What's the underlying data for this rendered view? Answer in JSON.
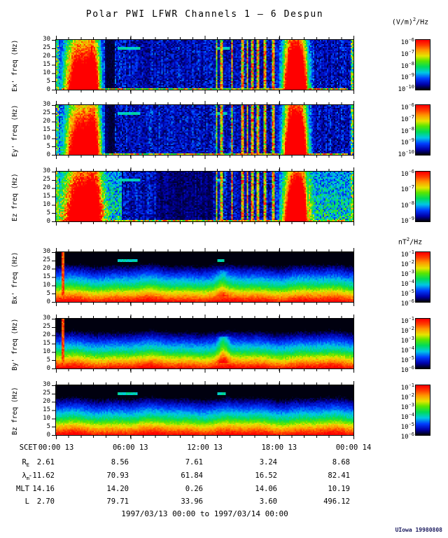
{
  "title": "Polar PWI LFWR Channels 1 — 6 Despun",
  "units": {
    "e": {
      "pre": "(V/m)",
      "sup": "2",
      "post": "/Hz"
    },
    "b": {
      "pre": "nT",
      "sup": "2",
      "post": "/Hz"
    }
  },
  "time_axis": {
    "prefix": "SCET",
    "ticks": [
      "00:00 13",
      "06:00 13",
      "12:00 13",
      "18:00 13",
      "00:00 14"
    ],
    "span_hours": 24
  },
  "freq_axis": {
    "ticks": [
      30,
      25,
      20,
      15,
      10,
      5,
      0
    ],
    "min": 0,
    "max": 30
  },
  "panels": [
    {
      "id": "ex",
      "ylabel": "Ex' freq (Hz)",
      "field": "E",
      "seed": 3,
      "cb_exponents": [
        -6,
        -7,
        -8,
        -9,
        -10
      ],
      "features": {
        "bursts": [
          {
            "t": 1.8,
            "sigma": 0.75,
            "amp": 1.25
          },
          {
            "t": 3.0,
            "sigma": 0.4,
            "amp": 1.0
          },
          {
            "t": 18.95,
            "sigma": 0.45,
            "amp": 1.35
          },
          {
            "t": 19.75,
            "sigma": 0.4,
            "amp": 1.25
          }
        ],
        "lines": [
          {
            "t": 12.95,
            "w": 0.06,
            "a": 0.8
          },
          {
            "t": 13.35,
            "w": 0.07,
            "a": 0.95
          },
          {
            "t": 14.2,
            "w": 0.09,
            "a": 1.0
          },
          {
            "t": 15.05,
            "w": 0.1,
            "a": 1.0
          },
          {
            "t": 15.45,
            "w": 0.09,
            "a": 1.0
          },
          {
            "t": 15.85,
            "w": 0.1,
            "a": 1.0
          },
          {
            "t": 16.3,
            "w": 0.09,
            "a": 0.95
          },
          {
            "t": 16.9,
            "w": 0.12,
            "a": 1.0
          },
          {
            "t": 17.55,
            "w": 0.16,
            "a": 1.0
          }
        ],
        "dashes": [
          {
            "t0": 5.0,
            "t1": 6.8,
            "f": 25
          },
          {
            "t0": 13.0,
            "t1": 14.0,
            "f": 25
          }
        ],
        "dark": [
          [
            3.95,
            4.75,
            0.25
          ]
        ]
      }
    },
    {
      "id": "ey",
      "ylabel": "Ey' freq (Hz)",
      "field": "E",
      "seed": 7,
      "cb_exponents": [
        -6,
        -7,
        -8,
        -9,
        -10
      ],
      "features": {
        "bursts": [
          {
            "t": 1.85,
            "sigma": 0.75,
            "amp": 1.25
          },
          {
            "t": 3.05,
            "sigma": 0.4,
            "amp": 1.0
          },
          {
            "t": 18.95,
            "sigma": 0.45,
            "amp": 1.35
          },
          {
            "t": 19.75,
            "sigma": 0.4,
            "amp": 1.25
          }
        ],
        "lines": [
          {
            "t": 12.95,
            "w": 0.06,
            "a": 0.8
          },
          {
            "t": 13.35,
            "w": 0.07,
            "a": 0.95
          },
          {
            "t": 14.2,
            "w": 0.09,
            "a": 1.0
          },
          {
            "t": 15.05,
            "w": 0.1,
            "a": 1.0
          },
          {
            "t": 15.45,
            "w": 0.09,
            "a": 1.0
          },
          {
            "t": 15.85,
            "w": 0.1,
            "a": 1.0
          },
          {
            "t": 16.3,
            "w": 0.09,
            "a": 0.95
          },
          {
            "t": 16.9,
            "w": 0.12,
            "a": 1.0
          },
          {
            "t": 17.55,
            "w": 0.16,
            "a": 1.0
          }
        ],
        "dashes": [
          {
            "t0": 5.0,
            "t1": 6.8,
            "f": 25
          },
          {
            "t0": 13.0,
            "t1": 13.8,
            "f": 25
          }
        ],
        "dark": [
          [
            3.95,
            4.75,
            0.25
          ]
        ]
      }
    },
    {
      "id": "ez",
      "ylabel": "Ez freq (Hz)",
      "field": "E",
      "seed": 11,
      "cb_exponents": [
        -6,
        -7,
        -8,
        -9
      ],
      "features": {
        "bursts": [
          {
            "t": 1.9,
            "sigma": 0.8,
            "amp": 1.15
          },
          {
            "t": 3.1,
            "sigma": 0.45,
            "amp": 0.95
          },
          {
            "t": 19.0,
            "sigma": 0.5,
            "amp": 1.3
          },
          {
            "t": 19.8,
            "sigma": 0.4,
            "amp": 1.2
          }
        ],
        "lines": [
          {
            "t": 12.95,
            "w": 0.06,
            "a": 0.85
          },
          {
            "t": 13.35,
            "w": 0.07,
            "a": 0.95
          },
          {
            "t": 14.2,
            "w": 0.09,
            "a": 1.0
          },
          {
            "t": 15.05,
            "w": 0.1,
            "a": 1.0
          },
          {
            "t": 15.45,
            "w": 0.09,
            "a": 1.0
          },
          {
            "t": 15.85,
            "w": 0.1,
            "a": 1.0
          },
          {
            "t": 16.3,
            "w": 0.09,
            "a": 0.95
          },
          {
            "t": 16.9,
            "w": 0.12,
            "a": 1.0
          },
          {
            "t": 17.55,
            "w": 0.16,
            "a": 1.0
          }
        ],
        "dashes": [
          {
            "t0": 5.0,
            "t1": 6.8,
            "f": 25
          },
          {
            "t0": 13.0,
            "t1": 13.7,
            "f": 25
          }
        ],
        "dark": [
          [
            8.0,
            12.7,
            0.5
          ]
        ],
        "bright": [
          [
            0.0,
            5.3
          ],
          [
            20.4,
            24.0
          ]
        ]
      }
    },
    {
      "id": "bx",
      "ylabel": "Bx' freq (Hz)",
      "field": "B",
      "seed": 17,
      "cb_exponents": [
        -1,
        -2,
        -3,
        -4,
        -5,
        -6
      ],
      "features": {
        "redline": 0.55,
        "dashes": [
          {
            "t0": 5.0,
            "t1": 6.6,
            "f": 25
          },
          {
            "t0": 13.0,
            "t1": 13.6,
            "f": 25
          }
        ],
        "smudges": [
          {
            "t": 13.4,
            "sigma": 0.3,
            "amp": 0.1,
            "f0": 0.1,
            "f1": 0.65
          }
        ]
      }
    },
    {
      "id": "by",
      "ylabel": "By' freq (Hz)",
      "field": "B",
      "seed": 23,
      "cb_exponents": [
        -1,
        -2,
        -3,
        -4,
        -5,
        -6
      ],
      "features": {
        "redline": 0.55,
        "dashes": [],
        "smudges": [
          {
            "t": 13.5,
            "sigma": 0.3,
            "amp": 0.2,
            "f0": 0.1,
            "f1": 0.65
          }
        ]
      }
    },
    {
      "id": "bz",
      "ylabel": "Bz freq (Hz)",
      "field": "B",
      "seed": 29,
      "cb_exponents": [
        -1,
        -2,
        -3,
        -4,
        -5,
        -6
      ],
      "features": {
        "dashes": [
          {
            "t0": 5.0,
            "t1": 6.6,
            "f": 25
          },
          {
            "t0": 13.0,
            "t1": 13.7,
            "f": 25
          }
        ],
        "smudges": []
      }
    }
  ],
  "ephemeris": {
    "rows": [
      {
        "label": "R",
        "sub": "E",
        "values": [
          "2.61",
          "8.56",
          "7.61",
          "3.24",
          "8.68"
        ]
      },
      {
        "label": "λ",
        "sub": "m",
        "values": [
          "-11.62",
          "70.93",
          "61.84",
          "16.52",
          "82.41"
        ]
      },
      {
        "label": "MLT",
        "sub": "",
        "values": [
          "14.16",
          "14.20",
          "0.26",
          "14.06",
          "10.19"
        ]
      },
      {
        "label": "L",
        "sub": "",
        "values": [
          "2.70",
          "79.71",
          "33.96",
          "3.60",
          "496.12"
        ]
      }
    ]
  },
  "footer": {
    "date_range": "1997/03/13 00:00 to 1997/03/14 00:00",
    "credit": "UIowa 19980808"
  },
  "chart_data": {
    "type": "heatmap",
    "subtype": "spectrogram-stack",
    "title": "Polar PWI LFWR Channels 1 — 6 Despun",
    "time_range": "1997/03/13 00:00 to 1997/03/14 00:00",
    "x_axis": {
      "label": "SCET",
      "tick_labels": [
        "00:00 13",
        "06:00 13",
        "12:00 13",
        "18:00 13",
        "00:00 14"
      ],
      "span_hours": 24
    },
    "y_axis": {
      "label": "freq (Hz)",
      "min": 0,
      "max": 30,
      "ticks": [
        0,
        5,
        10,
        15,
        20,
        25,
        30
      ]
    },
    "panels": [
      {
        "channel": "Ex'",
        "units": "(V/m)^2/Hz",
        "colorbar_max": "1e-6",
        "colorbar_min": "1e-10"
      },
      {
        "channel": "Ey'",
        "units": "(V/m)^2/Hz",
        "colorbar_max": "1e-6",
        "colorbar_min": "1e-10"
      },
      {
        "channel": "Ez",
        "units": "(V/m)^2/Hz",
        "colorbar_max": "1e-6",
        "colorbar_min": "1e-9"
      },
      {
        "channel": "Bx'",
        "units": "nT^2/Hz",
        "colorbar_max": "1e-1",
        "colorbar_min": "1e-6"
      },
      {
        "channel": "By'",
        "units": "nT^2/Hz",
        "colorbar_max": "1e-1",
        "colorbar_min": "1e-6"
      },
      {
        "channel": "Bz",
        "units": "nT^2/Hz",
        "colorbar_max": "1e-1",
        "colorbar_min": "1e-6"
      }
    ],
    "notable_features": [
      "Intense broadband E-field burst ~01:00-04:00 on all E channels",
      "Cluster of narrow broadband spikes ~13:00-17:30 on E channels",
      "Broad intense burst ~18:30-20:15 on E channels",
      "B channels show steady low-frequency band: red below ~5 Hz fading to blue above ~15 Hz",
      "Narrow full-height spike near 00:30 in Bx' and By'",
      "Light-blue interference dashes near 25 Hz around 05:00-06:45 and 13:00-13:45"
    ],
    "ephemeris": {
      "columns_scet": [
        "00:00 13",
        "06:00 13",
        "12:00 13",
        "18:00 13",
        "00:00 14"
      ],
      "RE": [
        2.61,
        8.56,
        7.61,
        3.24,
        8.68
      ],
      "lambda_m": [
        -11.62,
        70.93,
        61.84,
        16.52,
        82.41
      ],
      "MLT": [
        14.16,
        14.2,
        0.26,
        14.06,
        10.19
      ],
      "L": [
        2.7,
        79.71,
        33.96,
        3.6,
        496.12
      ]
    }
  }
}
